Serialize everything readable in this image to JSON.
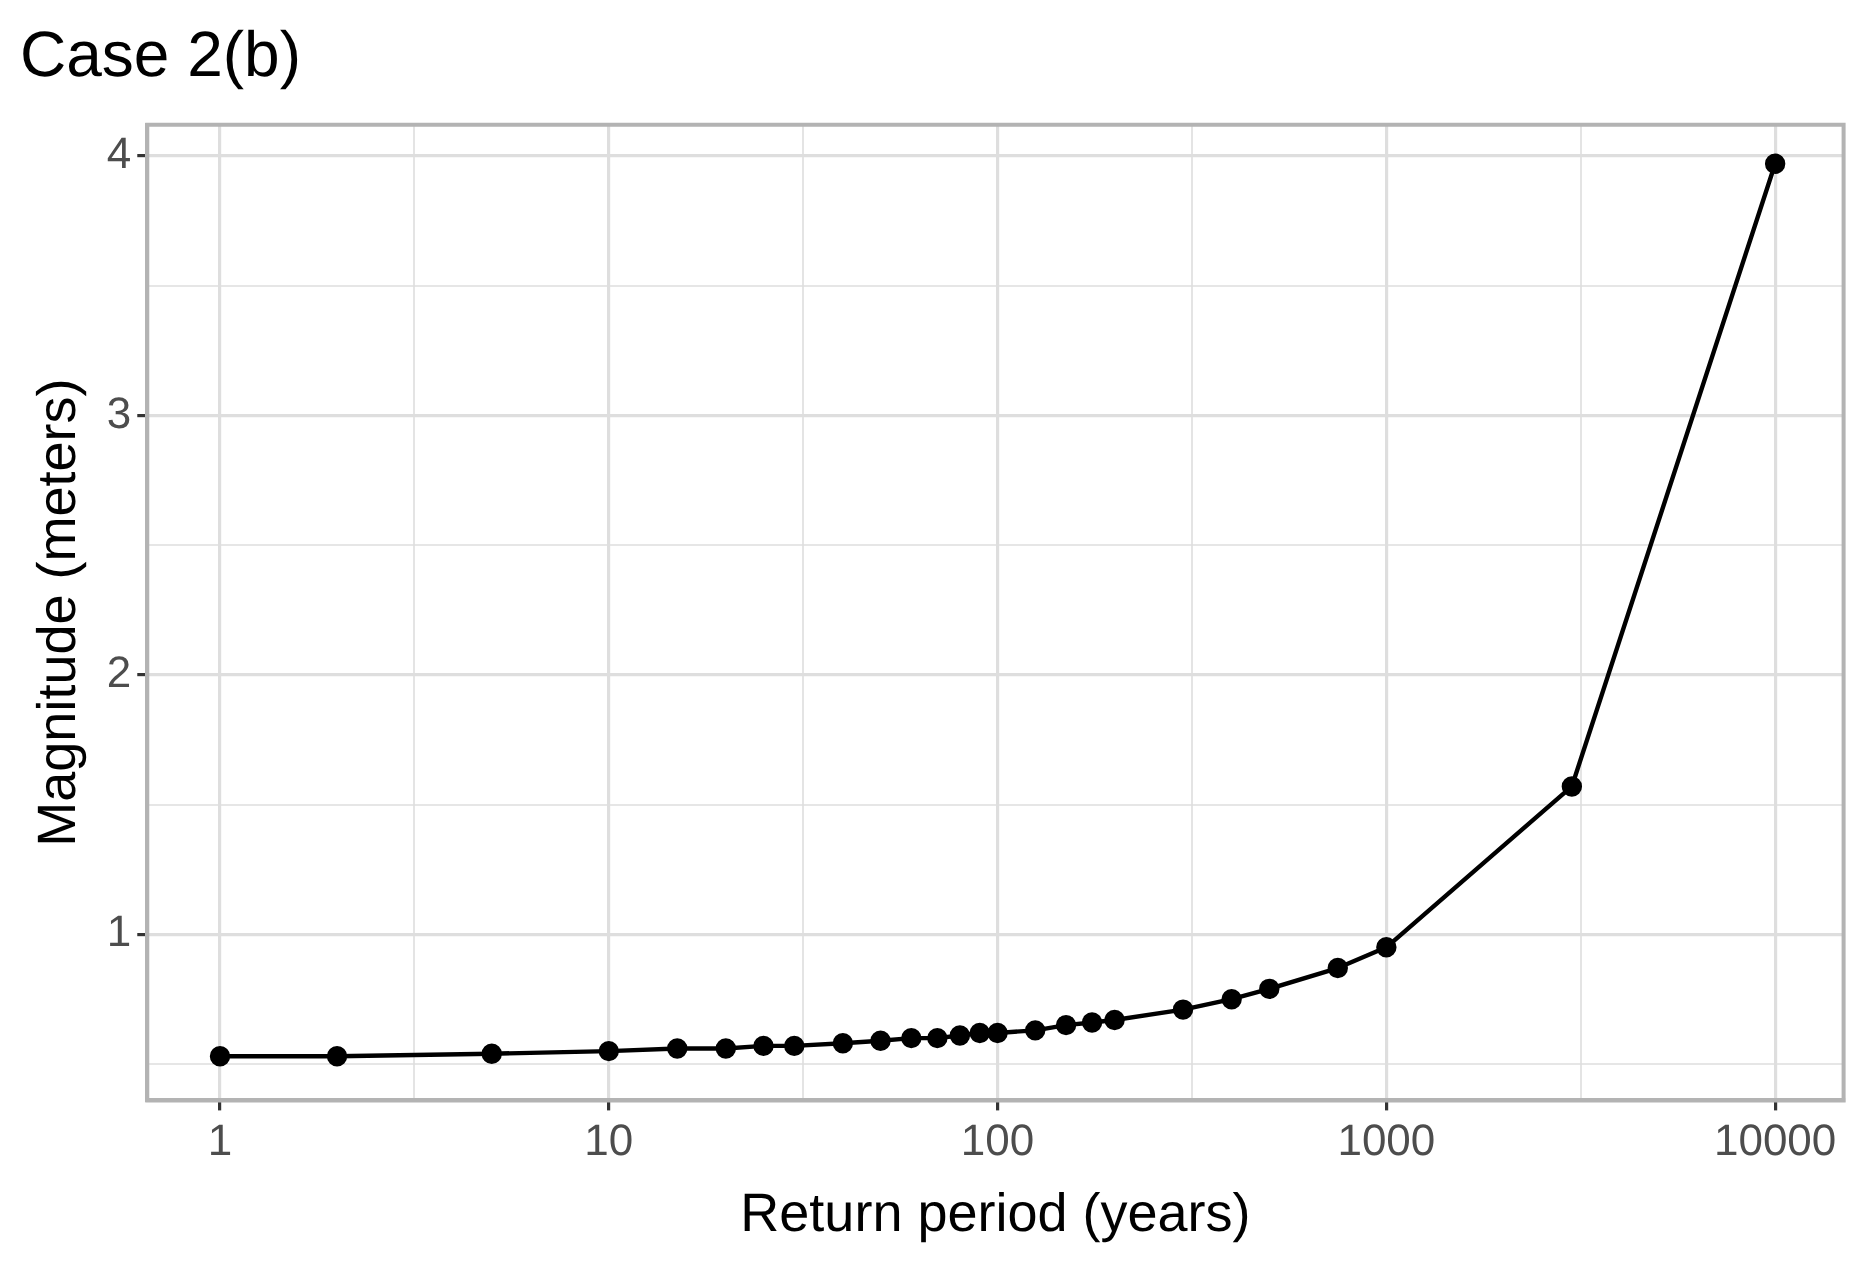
{
  "chart_data": {
    "type": "line",
    "title": "Case 2(b)",
    "xlabel": "Return period (years)",
    "ylabel": "Magnitude (meters)",
    "x": [
      1,
      2,
      5,
      10,
      15,
      20,
      25,
      30,
      40,
      50,
      60,
      70,
      80,
      90,
      100,
      125,
      150,
      175,
      200,
      300,
      400,
      500,
      750,
      1000,
      3000,
      10000
    ],
    "series": [
      {
        "color": "#000000",
        "values": [
          0.53,
          0.53,
          0.54,
          0.55,
          0.56,
          0.56,
          0.57,
          0.57,
          0.58,
          0.59,
          0.6,
          0.6,
          0.61,
          0.62,
          0.62,
          0.63,
          0.65,
          0.66,
          0.67,
          0.71,
          0.75,
          0.79,
          0.87,
          0.95,
          1.57,
          3.97
        ]
      }
    ],
    "log": "x",
    "xlim": [
      0.65,
      15000
    ],
    "xticks": [
      1,
      {
        "value": 3.16,
        "label": null
      },
      10,
      {
        "value": 31.6,
        "label": null
      },
      100,
      {
        "value": 316,
        "label": null
      },
      1000,
      {
        "value": 3162,
        "label": null
      },
      10000
    ],
    "ylim": [
      0.36,
      4.12
    ],
    "yticks": [
      {
        "value": 0.5,
        "label": null
      },
      1,
      {
        "value": 1.5,
        "label": null
      },
      2,
      {
        "value": 2.5,
        "label": null
      },
      3,
      {
        "value": 3.5,
        "label": null
      },
      4
    ],
    "grid": true,
    "legend": false,
    "marker": "circle",
    "line_style": "solid"
  }
}
